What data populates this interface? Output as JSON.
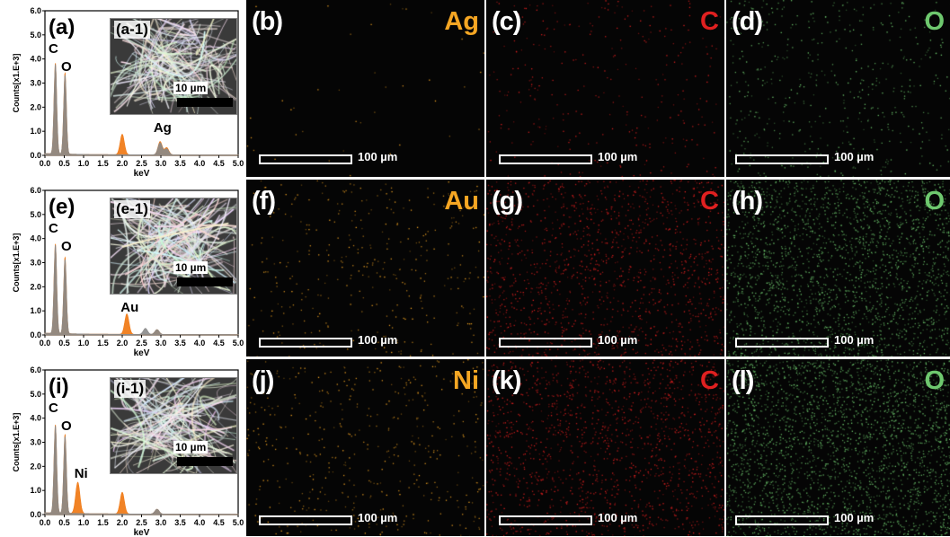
{
  "rows": [
    {
      "spec": {
        "label": "(a)",
        "inset": "(a-1)",
        "inset_scale": "10 µm",
        "peak_labels": [
          "C",
          "O",
          "Ag"
        ]
      },
      "maps": [
        {
          "label": "(b)",
          "element": "Ag",
          "scale": "100 µm",
          "color": "#f5a623",
          "density": 40
        },
        {
          "label": "(c)",
          "element": "C",
          "scale": "100 µm",
          "color": "#e02020",
          "density": 300
        },
        {
          "label": "(d)",
          "element": "O",
          "scale": "100 µm",
          "color": "#6ec86e",
          "density": 500
        }
      ]
    },
    {
      "spec": {
        "label": "(e)",
        "inset": "(e-1)",
        "inset_scale": "10 µm",
        "peak_labels": [
          "C",
          "O",
          "Au"
        ]
      },
      "maps": [
        {
          "label": "(f)",
          "element": "Au",
          "scale": "100 µm",
          "color": "#f5a623",
          "density": 350
        },
        {
          "label": "(g)",
          "element": "C",
          "scale": "100 µm",
          "color": "#e02020",
          "density": 1400
        },
        {
          "label": "(h)",
          "element": "O",
          "scale": "100 µm",
          "color": "#6ec86e",
          "density": 2200
        }
      ]
    },
    {
      "spec": {
        "label": "(i)",
        "inset": "(i-1)",
        "inset_scale": "10 µm",
        "peak_labels": [
          "C",
          "O",
          "Ni"
        ]
      },
      "maps": [
        {
          "label": "(j)",
          "element": "Ni",
          "scale": "100 µm",
          "color": "#f5a623",
          "density": 450
        },
        {
          "label": "(k)",
          "element": "C",
          "scale": "100 µm",
          "color": "#e02020",
          "density": 1500
        },
        {
          "label": "(l)",
          "element": "O",
          "scale": "100 µm",
          "color": "#6ec86e",
          "density": 2600
        }
      ]
    }
  ],
  "axes": {
    "ylabel": "Counts[x1.E+3]",
    "xlabel": "keV",
    "yticks": [
      "6.0",
      "5.0",
      "4.0",
      "3.0",
      "2.0",
      "1.0",
      "0.0"
    ],
    "xticks": [
      "0.0",
      "0.5",
      "1.0",
      "1.5",
      "2.0",
      "2.5",
      "3.0",
      "3.5",
      "4.0",
      "4.5",
      "5.0"
    ]
  },
  "chart_data": [
    {
      "type": "area",
      "xlabel": "keV",
      "ylabel": "Counts[x1.E+3]",
      "xlim": [
        0,
        5
      ],
      "ylim": [
        0,
        6
      ],
      "series": [
        {
          "name": "",
          "color": "#f07c1a",
          "peaks": [
            [
              0.27,
              3.8
            ],
            [
              0.52,
              3.4
            ],
            [
              2.0,
              0.85
            ],
            [
              2.98,
              0.55
            ],
            [
              3.15,
              0.3
            ]
          ]
        },
        {
          "name": "",
          "color": "#8a8a8a",
          "peaks": [
            [
              0.27,
              3.75
            ],
            [
              0.52,
              3.3
            ],
            [
              2.98,
              0.5
            ],
            [
              3.15,
              0.25
            ]
          ]
        }
      ]
    },
    {
      "type": "area",
      "xlabel": "keV",
      "ylabel": "Counts[x1.E+3]",
      "xlim": [
        0,
        5
      ],
      "ylim": [
        0,
        6
      ],
      "series": [
        {
          "name": "",
          "color": "#f07c1a",
          "peaks": [
            [
              0.27,
              3.75
            ],
            [
              0.52,
              3.2
            ],
            [
              2.12,
              0.85
            ],
            [
              2.9,
              0.2
            ]
          ]
        },
        {
          "name": "",
          "color": "#8a8a8a",
          "peaks": [
            [
              0.27,
              3.7
            ],
            [
              0.52,
              3.1
            ],
            [
              2.6,
              0.25
            ],
            [
              2.9,
              0.2
            ]
          ]
        }
      ]
    },
    {
      "type": "area",
      "xlabel": "keV",
      "ylabel": "Counts[x1.E+3]",
      "xlim": [
        0,
        5
      ],
      "ylim": [
        0,
        6
      ],
      "series": [
        {
          "name": "",
          "color": "#f07c1a",
          "peaks": [
            [
              0.27,
              3.7
            ],
            [
              0.52,
              3.3
            ],
            [
              0.85,
              1.3
            ],
            [
              2.0,
              0.9
            ],
            [
              2.9,
              0.2
            ]
          ]
        },
        {
          "name": "",
          "color": "#8a8a8a",
          "peaks": [
            [
              0.27,
              3.65
            ],
            [
              0.52,
              3.2
            ],
            [
              2.9,
              0.2
            ]
          ]
        }
      ]
    }
  ]
}
